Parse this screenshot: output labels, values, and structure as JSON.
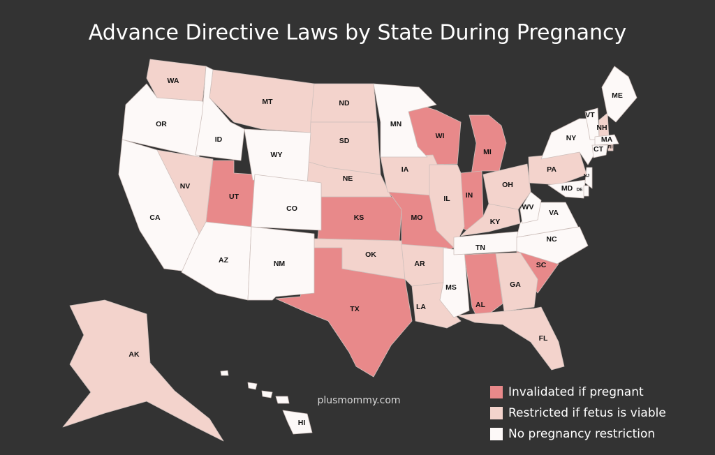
{
  "title": "Advance Directive Laws by State During Pregnancy",
  "watermark": "plusmommy.com",
  "legend": [
    {
      "label": "Invalidated if pregnant",
      "color": "#e8898a",
      "states": [
        "UT",
        "KS",
        "MO",
        "WI",
        "MI",
        "IN",
        "TX",
        "AL",
        "SC"
      ]
    },
    {
      "label": "Restricted if fetus is viable",
      "color": "#f3d3cc",
      "states": [
        "WA",
        "MT",
        "ND",
        "SD",
        "NE",
        "IA",
        "IL",
        "NV",
        "OK",
        "AR",
        "LA",
        "KY",
        "OH",
        "PA",
        "GA",
        "FL",
        "AK",
        "NH",
        "RI"
      ]
    },
    {
      "label": "No pregnancy restriction",
      "color": "#fdf9f8",
      "states": [
        "OR",
        "ID",
        "WY",
        "CO",
        "CA",
        "AZ",
        "NM",
        "MN",
        "MS",
        "TN",
        "NC",
        "VA",
        "WV",
        "NY",
        "VT",
        "ME",
        "MA",
        "CT",
        "NJ",
        "MD",
        "DE",
        "HI"
      ]
    }
  ]
}
